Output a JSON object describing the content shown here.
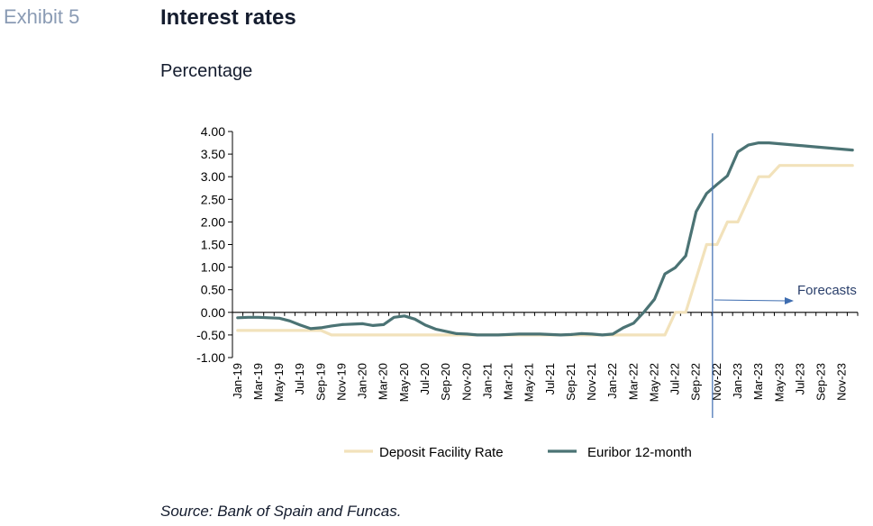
{
  "header": {
    "exhibit": "Exhibit 5",
    "title": "Interest rates",
    "subtitle": "Percentage"
  },
  "footer": {
    "source": "Source: Bank of Spain and Funcas."
  },
  "chart_data": {
    "type": "line",
    "title": "Interest rates",
    "ylabel": "Percentage",
    "xlabel": "",
    "ylim": [
      -1.0,
      4.0
    ],
    "yticks": [
      "4.00",
      "3.50",
      "3.00",
      "2.50",
      "2.00",
      "1.50",
      "1.00",
      "0.50",
      "0.00",
      "-0.50",
      "-1.00"
    ],
    "x": [
      "Jan-19",
      "Feb-19",
      "Mar-19",
      "Apr-19",
      "May-19",
      "Jun-19",
      "Jul-19",
      "Aug-19",
      "Sep-19",
      "Oct-19",
      "Nov-19",
      "Dec-19",
      "Jan-20",
      "Feb-20",
      "Mar-20",
      "Apr-20",
      "May-20",
      "Jun-20",
      "Jul-20",
      "Aug-20",
      "Sep-20",
      "Oct-20",
      "Nov-20",
      "Dec-20",
      "Jan-21",
      "Feb-21",
      "Mar-21",
      "Apr-21",
      "May-21",
      "Jun-21",
      "Jul-21",
      "Aug-21",
      "Sep-21",
      "Oct-21",
      "Nov-21",
      "Dec-21",
      "Jan-22",
      "Feb-22",
      "Mar-22",
      "Apr-22",
      "May-22",
      "Jun-22",
      "Jul-22",
      "Aug-22",
      "Sep-22",
      "Oct-22",
      "Nov-22",
      "Dec-22",
      "Jan-23",
      "Feb-23",
      "Mar-23",
      "Apr-23",
      "May-23",
      "Jun-23",
      "Jul-23",
      "Aug-23",
      "Sep-23",
      "Oct-23",
      "Nov-23",
      "Dec-23"
    ],
    "xtick_labels": [
      "Jan-19",
      "Mar-19",
      "May-19",
      "Jul-19",
      "Sep-19",
      "Nov-19",
      "Jan-20",
      "Mar-20",
      "May-20",
      "Jul-20",
      "Sep-20",
      "Nov-20",
      "Jan-21",
      "Mar-21",
      "May-21",
      "Jul-21",
      "Sep-21",
      "Nov-21",
      "Jan-22",
      "Mar-22",
      "May-22",
      "Jul-22",
      "Sep-22",
      "Nov-22",
      "Jan-23",
      "Mar-23",
      "May-23",
      "Jul-23",
      "Sep-23",
      "Nov-23"
    ],
    "series": [
      {
        "name": "Deposit Facility Rate",
        "color": "#f2e2bb",
        "values": [
          -0.4,
          -0.4,
          -0.4,
          -0.4,
          -0.4,
          -0.4,
          -0.4,
          -0.4,
          -0.4,
          -0.5,
          -0.5,
          -0.5,
          -0.5,
          -0.5,
          -0.5,
          -0.5,
          -0.5,
          -0.5,
          -0.5,
          -0.5,
          -0.5,
          -0.5,
          -0.5,
          -0.5,
          -0.5,
          -0.5,
          -0.5,
          -0.5,
          -0.5,
          -0.5,
          -0.5,
          -0.5,
          -0.5,
          -0.5,
          -0.5,
          -0.5,
          -0.5,
          -0.5,
          -0.5,
          -0.5,
          -0.5,
          -0.5,
          0.0,
          0.0,
          0.75,
          1.5,
          1.5,
          2.0,
          2.0,
          2.5,
          3.0,
          3.0,
          3.25,
          3.25,
          3.25,
          3.25,
          3.25,
          3.25,
          3.25,
          3.25
        ]
      },
      {
        "name": "Euribor 12-month",
        "color": "#4b7374",
        "values": [
          -0.12,
          -0.11,
          -0.11,
          -0.12,
          -0.13,
          -0.19,
          -0.28,
          -0.36,
          -0.34,
          -0.3,
          -0.27,
          -0.26,
          -0.25,
          -0.29,
          -0.27,
          -0.11,
          -0.08,
          -0.15,
          -0.28,
          -0.37,
          -0.42,
          -0.47,
          -0.48,
          -0.5,
          -0.5,
          -0.5,
          -0.49,
          -0.48,
          -0.48,
          -0.48,
          -0.49,
          -0.5,
          -0.49,
          -0.47,
          -0.48,
          -0.5,
          -0.48,
          -0.34,
          -0.24,
          0.01,
          0.29,
          0.85,
          0.99,
          1.25,
          2.23,
          2.63,
          2.83,
          3.02,
          3.55,
          3.7,
          3.75,
          3.75,
          3.73,
          3.71,
          3.69,
          3.67,
          3.65,
          3.63,
          3.61,
          3.59
        ]
      }
    ],
    "annotations": [
      {
        "text": "Forecasts",
        "at": "Nov-22",
        "color": "#3e6db0"
      }
    ],
    "legend": "bottom",
    "grid": false
  }
}
